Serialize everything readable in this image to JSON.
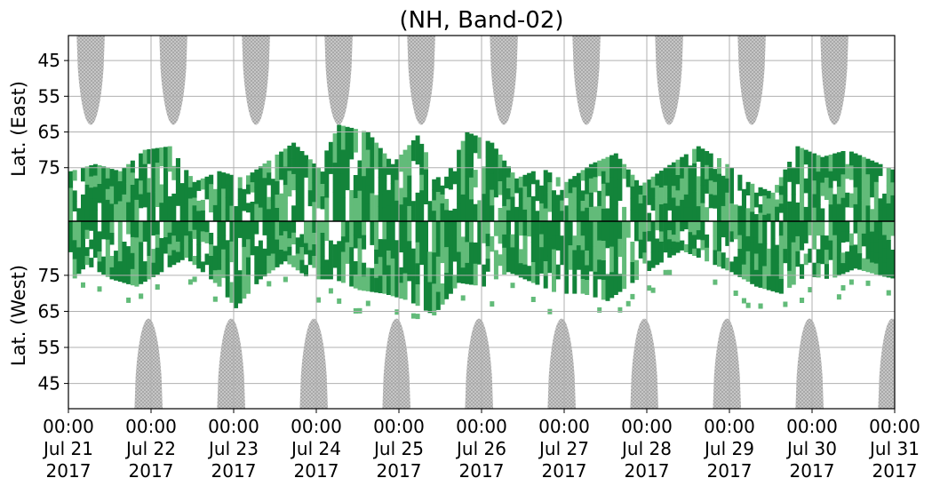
{
  "chart_data": {
    "type": "heatmap",
    "title": "(NH, Band-02)",
    "ylabel_top": "Lat. (East)",
    "ylabel_bottom": "Lat. (West)",
    "x_ticks": [
      {
        "time": "00:00",
        "date": "Jul 21",
        "year": "2017"
      },
      {
        "time": "00:00",
        "date": "Jul 22",
        "year": "2017"
      },
      {
        "time": "00:00",
        "date": "Jul 23",
        "year": "2017"
      },
      {
        "time": "00:00",
        "date": "Jul 24",
        "year": "2017"
      },
      {
        "time": "00:00",
        "date": "Jul 25",
        "year": "2017"
      },
      {
        "time": "00:00",
        "date": "Jul 26",
        "year": "2017"
      },
      {
        "time": "00:00",
        "date": "Jul 27",
        "year": "2017"
      },
      {
        "time": "00:00",
        "date": "Jul 28",
        "year": "2017"
      },
      {
        "time": "00:00",
        "date": "Jul 29",
        "year": "2017"
      },
      {
        "time": "00:00",
        "date": "Jul 30",
        "year": "2017"
      },
      {
        "time": "00:00",
        "date": "Jul 31",
        "year": "2017"
      }
    ],
    "y_ticks_top": [
      "45",
      "55",
      "65",
      "75"
    ],
    "y_ticks_bottom": [
      "75",
      "65",
      "55",
      "45"
    ],
    "lat_range": [
      38,
      90
    ],
    "grid": true,
    "colors": {
      "coverage_gap": "#bdbdbd",
      "echo_strong": "#13843a",
      "echo_weak": "#62bb79",
      "divider": "#000000",
      "grid": "#b0b0b0"
    },
    "gray_east_peaks_day": [
      0.27,
      1.27,
      2.27,
      3.27,
      4.27,
      5.27,
      6.27,
      7.27,
      8.27,
      9.27
    ],
    "gray_west_peaks_day": [
      0.97,
      1.97,
      2.97,
      3.97,
      4.97,
      5.97,
      6.97,
      7.97,
      8.97,
      9.97
    ],
    "gray_min_lat": 63,
    "east_echo_upper_lat": [
      [
        0.0,
        76
      ],
      [
        0.3,
        74
      ],
      [
        0.6,
        76
      ],
      [
        0.9,
        70
      ],
      [
        1.2,
        69
      ],
      [
        1.5,
        79
      ],
      [
        1.8,
        76
      ],
      [
        2.1,
        78
      ],
      [
        2.4,
        73
      ],
      [
        2.7,
        68
      ],
      [
        3.0,
        75
      ],
      [
        3.25,
        63
      ],
      [
        3.6,
        65
      ],
      [
        3.9,
        74
      ],
      [
        4.2,
        66
      ],
      [
        4.5,
        80
      ],
      [
        4.8,
        65
      ],
      [
        5.1,
        68
      ],
      [
        5.4,
        78
      ],
      [
        5.7,
        75
      ],
      [
        6.0,
        79
      ],
      [
        6.3,
        74
      ],
      [
        6.6,
        71
      ],
      [
        6.9,
        80
      ],
      [
        7.2,
        75
      ],
      [
        7.6,
        69
      ],
      [
        7.9,
        73
      ],
      [
        8.2,
        79
      ],
      [
        8.5,
        82
      ],
      [
        8.8,
        69
      ],
      [
        9.1,
        72
      ],
      [
        9.4,
        70
      ],
      [
        9.7,
        73
      ],
      [
        10.0,
        76
      ]
    ],
    "west_echo_lower_lat": [
      [
        0.0,
        73
      ],
      [
        0.2,
        78
      ],
      [
        0.5,
        74
      ],
      [
        0.8,
        72
      ],
      [
        1.1,
        76
      ],
      [
        1.4,
        80
      ],
      [
        1.8,
        72
      ],
      [
        2.0,
        66
      ],
      [
        2.3,
        74
      ],
      [
        2.6,
        79
      ],
      [
        2.9,
        74
      ],
      [
        3.2,
        74
      ],
      [
        3.5,
        71
      ],
      [
        3.8,
        70
      ],
      [
        4.1,
        68
      ],
      [
        4.4,
        64
      ],
      [
        4.7,
        73
      ],
      [
        5.0,
        72
      ],
      [
        5.3,
        76
      ],
      [
        5.6,
        73
      ],
      [
        5.9,
        70
      ],
      [
        6.2,
        70
      ],
      [
        6.5,
        68
      ],
      [
        6.8,
        73
      ],
      [
        7.1,
        78
      ],
      [
        7.4,
        82
      ],
      [
        7.7,
        79
      ],
      [
        8.0,
        76
      ],
      [
        8.3,
        72
      ],
      [
        8.6,
        70
      ],
      [
        8.9,
        75
      ],
      [
        9.2,
        74
      ],
      [
        9.5,
        77
      ],
      [
        9.8,
        75
      ],
      [
        10.0,
        74
      ]
    ]
  }
}
